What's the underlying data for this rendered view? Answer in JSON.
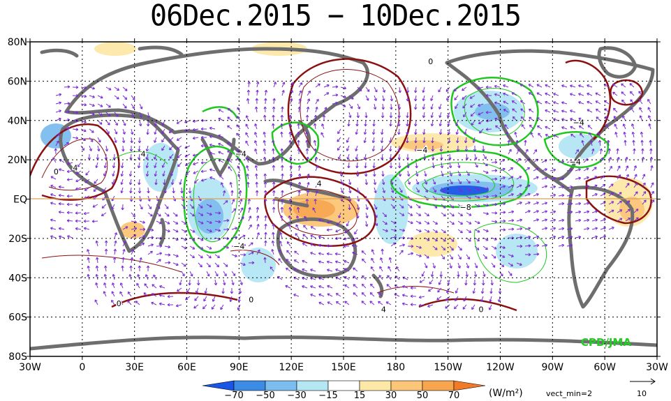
{
  "title": "06Dec.2015 − 10Dec.2015",
  "lat_labels": [
    "80N",
    "60N",
    "40N",
    "20N",
    "EQ",
    "20S",
    "40S",
    "60S",
    "80S"
  ],
  "lon_labels": [
    "30W",
    "0",
    "30E",
    "60E",
    "90E",
    "120E",
    "150E",
    "180",
    "150W",
    "120W",
    "90W",
    "60W",
    "30W"
  ],
  "colorbar": {
    "labels": [
      "−70",
      "−50",
      "−30",
      "−15",
      "15",
      "30",
      "50",
      "70"
    ],
    "colors": [
      "#1a55e6",
      "#3c8ce6",
      "#7cbcee",
      "#b4e6f4",
      "#ffffff",
      "#fde8a8",
      "#fbc678",
      "#f7a54e",
      "#f07a28"
    ],
    "unit": "(W/m²)"
  },
  "vector_note": "vect_min=2",
  "ref_vector_label": "10",
  "credit": "CPD/JMA",
  "contour_labels": [
    {
      "text": "0",
      "lon": 200,
      "lat": 70
    },
    {
      "text": "4",
      "lon": 35,
      "lat": 23
    },
    {
      "text": "−4",
      "lon": 91,
      "lat": 23
    },
    {
      "text": "4",
      "lon": -4,
      "lat": 16
    },
    {
      "text": "0",
      "lon": -15,
      "lat": 14
    },
    {
      "text": "−4",
      "lon": 195,
      "lat": 25
    },
    {
      "text": "−4",
      "lon": 90,
      "lat": -24
    },
    {
      "text": "4",
      "lon": 136,
      "lat": 8
    },
    {
      "text": "−8",
      "lon": 220,
      "lat": -4
    },
    {
      "text": "−4",
      "lon": 285,
      "lat": 39
    },
    {
      "text": "−4",
      "lon": 283,
      "lat": 19
    },
    {
      "text": "0",
      "lon": 21,
      "lat": -53
    },
    {
      "text": "0",
      "lon": 97,
      "lat": -51
    },
    {
      "text": "4",
      "lon": 173,
      "lat": -56
    },
    {
      "text": "0",
      "lon": 229,
      "lat": -56
    }
  ],
  "colors": {
    "coast": "#6e6e6e",
    "positive_contour": "#8b1010",
    "negative_contour": "#1ec81e",
    "vector": "#7a2bd6",
    "equator": "#d8a05a"
  }
}
